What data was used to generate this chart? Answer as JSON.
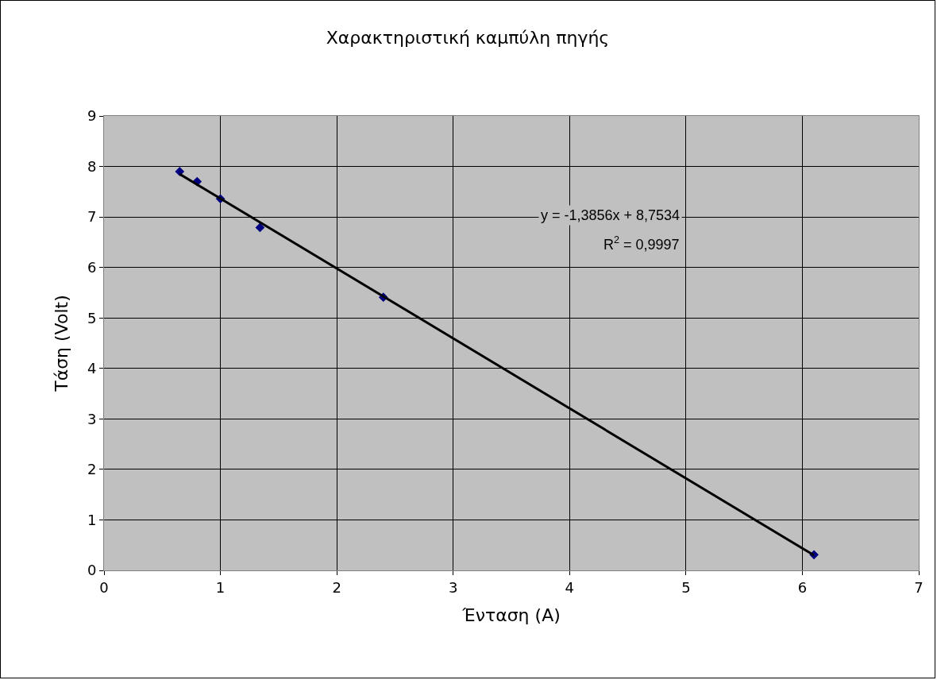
{
  "chart_data": {
    "type": "scatter",
    "title": "Χαρακτηριστική καμπύλη πηγής",
    "xlabel": "Ένταση (A)",
    "ylabel": "Τάση (Volt)",
    "x": [
      0.65,
      0.8,
      1.0,
      1.34,
      2.4,
      6.1
    ],
    "series": [
      {
        "color": "#000080",
        "values": [
          7.9,
          7.7,
          7.36,
          6.79,
          5.41,
          0.31
        ],
        "marker": "diamond"
      },
      {
        "type": "line",
        "color": "#000000",
        "x": [
          0.65,
          6.1
        ],
        "values": [
          7.85,
          0.3
        ],
        "marker": "none",
        "line_style": "solid"
      }
    ],
    "annotations": [
      "y = -1,3856x + 8,7534",
      "R$^{2}$ = 0,9997"
    ],
    "xlim": [
      0,
      7
    ],
    "xticks": [
      0,
      1,
      2,
      3,
      4,
      5,
      6,
      7
    ],
    "ylim": [
      0,
      9
    ],
    "yticks": [
      0,
      1,
      2,
      3,
      4,
      5,
      6,
      7,
      8,
      9
    ],
    "grid": true
  }
}
